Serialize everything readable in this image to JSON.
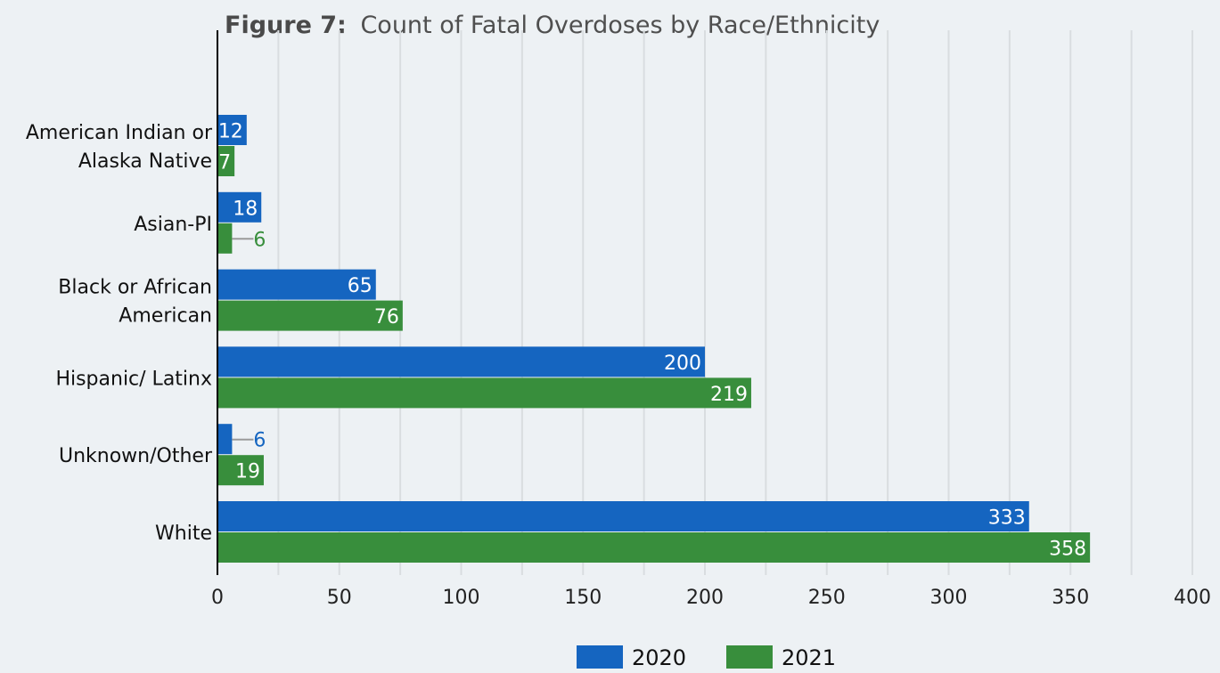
{
  "chart_data": {
    "type": "bar",
    "orientation": "horizontal",
    "title_prefix": "Figure 7:",
    "title": "Count of Fatal Overdoses by Race/Ethnicity",
    "xlabel": "",
    "ylabel": "",
    "categories": [
      "American Indian or Alaska Native",
      "Asian-PI",
      "Black or African American",
      "Hispanic/ Latinx",
      "Unknown/Other",
      "White"
    ],
    "category_label_lines": [
      [
        "American Indian or",
        "Alaska Native"
      ],
      [
        "Asian-PI"
      ],
      [
        "Black or African",
        "American"
      ],
      [
        "Hispanic/ Latinx"
      ],
      [
        "Unknown/Other"
      ],
      [
        "White"
      ]
    ],
    "series": [
      {
        "name": "2020",
        "color": "#1565c0",
        "values": [
          12,
          18,
          65,
          200,
          6,
          333
        ]
      },
      {
        "name": "2021",
        "color": "#388e3c",
        "values": [
          7,
          6,
          76,
          219,
          19,
          358
        ]
      }
    ],
    "xlim": [
      0,
      400
    ],
    "xticks": [
      0,
      50,
      100,
      150,
      200,
      250,
      300,
      350,
      400
    ],
    "grid": true,
    "legend": "bottom-center",
    "data_labels": true,
    "label_color_inside": "#ffffff"
  }
}
